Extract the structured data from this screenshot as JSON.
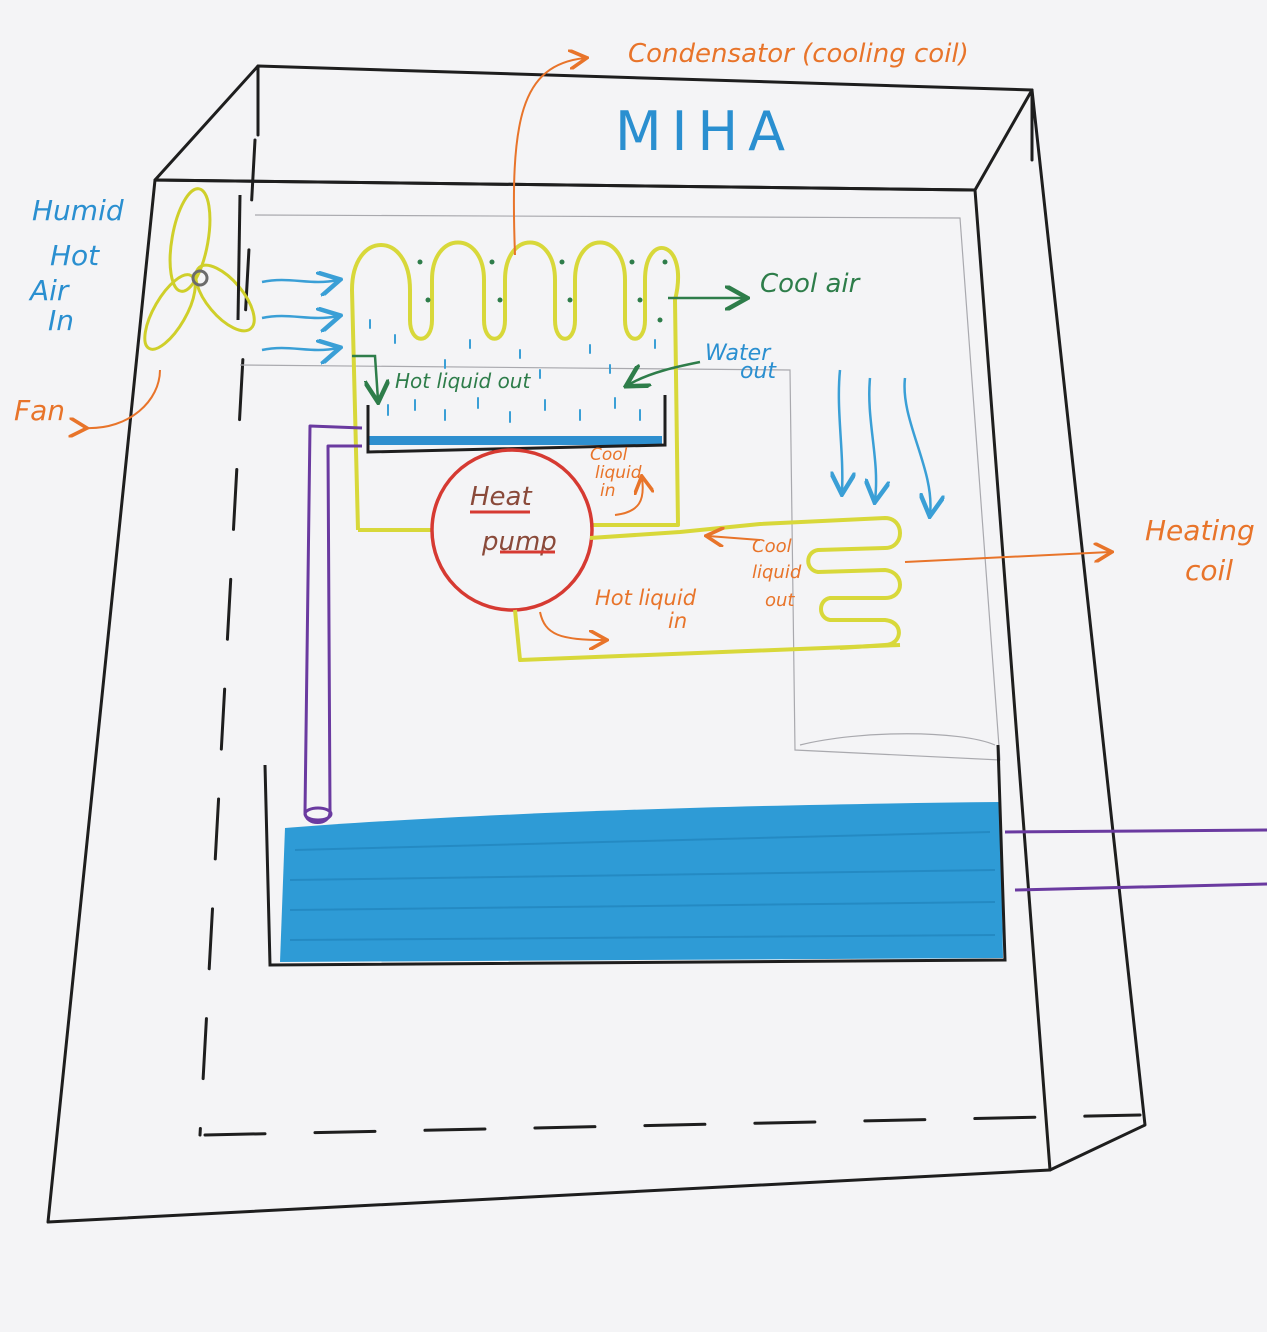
{
  "title": "MIHA",
  "labels": {
    "condensator": "Condensator (cooling coil)",
    "humid_hot_air_in": [
      "Humid",
      "Hot",
      "Air",
      "In"
    ],
    "fan": "Fan",
    "cool_air": "Cool air",
    "hot_liquid_out": "Hot liquid out",
    "water_out": [
      "Water",
      "out"
    ],
    "cool_liquid_in": [
      "Cool",
      "liquid",
      "in"
    ],
    "heat_pump": [
      "Heat",
      "pump"
    ],
    "cool_liquid_out": [
      "Cool",
      "liquid",
      "out"
    ],
    "hot_liquid_in": [
      "Hot liquid",
      "in"
    ],
    "heating_coil": [
      "Heating",
      "coil"
    ]
  },
  "colors": {
    "frame": "#1e1e1e",
    "title": "#2a8fd0",
    "annotation": "#e8742a",
    "airflow": "#3a9fd6",
    "coil": "#d8d83a",
    "condensate": "#2e7d4a",
    "heat_pump": "#d63a32",
    "water": "#2e9bd6",
    "pipe": "#6a3aa0",
    "paper": "#f4f4f6"
  }
}
